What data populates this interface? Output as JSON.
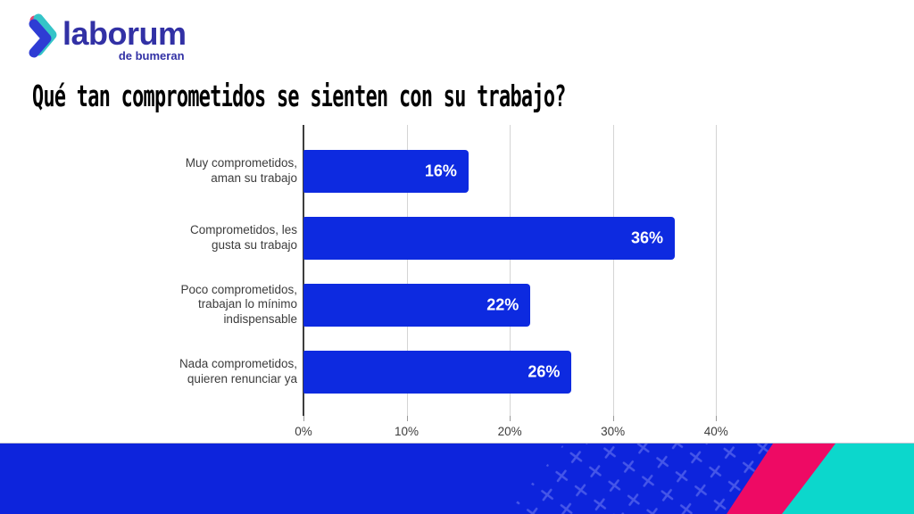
{
  "logo": {
    "brand": "laborum",
    "sub": "de bumeran",
    "text_color": "#3231a5",
    "icon_colors": {
      "teal": "#35c4c8",
      "blue": "#2e3cd4",
      "pink": "#e8446e"
    }
  },
  "title": "Qué tan comprometidos se sienten con su trabajo?",
  "chart_data": {
    "type": "bar",
    "orientation": "horizontal",
    "title": "Qué tan comprometidos se sienten con su trabajo?",
    "categories": [
      "Muy comprometidos, aman su trabajo",
      "Comprometidos, les gusta su trabajo",
      "Poco comprometidos, trabajan lo mínimo indispensable",
      "Nada comprometidos, quieren renunciar ya"
    ],
    "values": [
      16,
      36,
      22,
      26
    ],
    "value_labels": [
      "16%",
      "36%",
      "22%",
      "26%"
    ],
    "x_ticks": [
      "0%",
      "10%",
      "20%",
      "30%",
      "40%"
    ],
    "x_tick_values": [
      0,
      10,
      20,
      30,
      40
    ],
    "xlim": [
      0,
      45
    ],
    "bar_color": "#0d2ae0",
    "grid": true,
    "legend": "none",
    "xlabel": "",
    "ylabel": ""
  },
  "footer": {
    "colors": {
      "blue": "#0d24dc",
      "pattern_x": "#4556e8",
      "pink": "#ee0a64",
      "teal": "#0cd7cc"
    }
  }
}
